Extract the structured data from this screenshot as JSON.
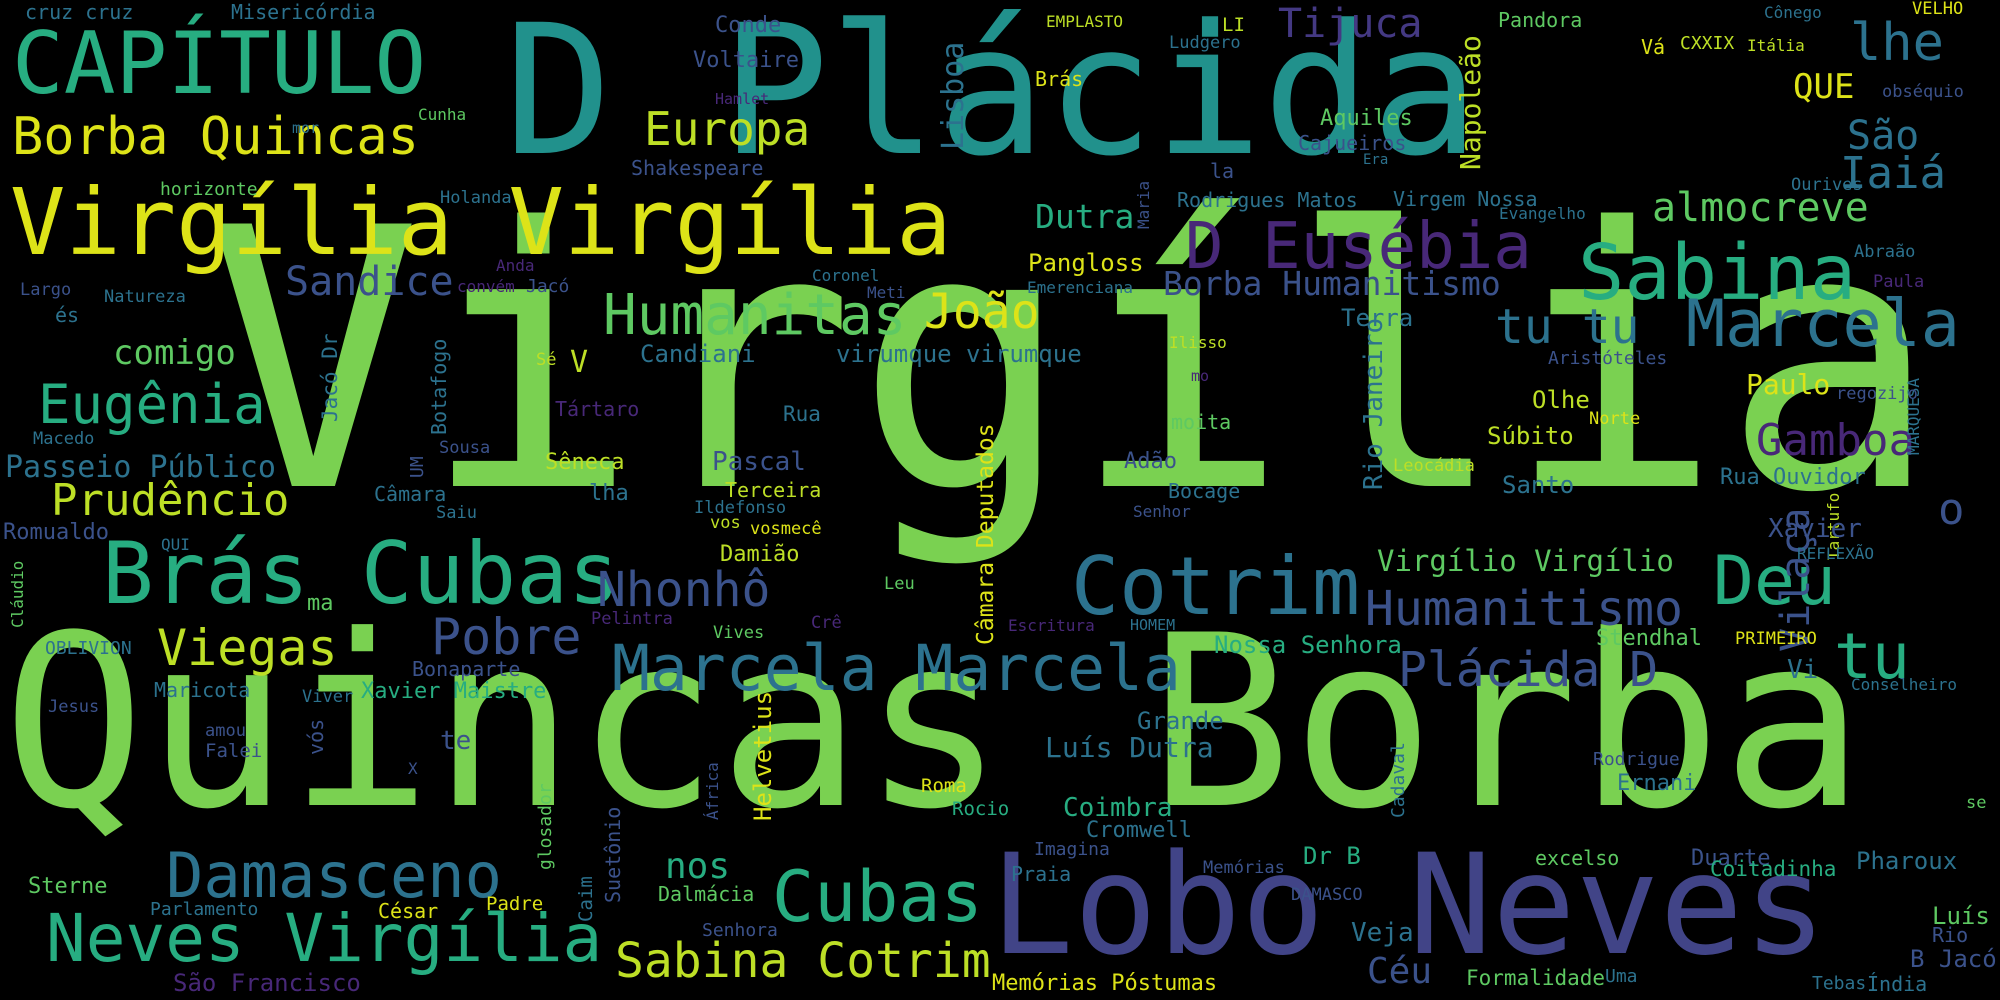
{
  "background_color": "#000000",
  "words": [
    {
      "text": "Virgília",
      "color": "#7ad151",
      "vertical": false
    },
    {
      "text": "Quincas Borba",
      "color": "#7ad151",
      "vertical": false
    },
    {
      "text": "D Plácida",
      "color": "#21918c",
      "vertical": false
    },
    {
      "text": "Lobo Neves",
      "color": "#414487",
      "vertical": false
    },
    {
      "text": "Virgília Virgília",
      "color": "#dde318",
      "vertical": false
    },
    {
      "text": "CAPÍTULO",
      "color": "#27ad81",
      "vertical": false
    },
    {
      "text": "Brás Cubas",
      "color": "#27ad81",
      "vertical": false
    },
    {
      "text": "Borba Quincas",
      "color": "#dde318",
      "vertical": false
    },
    {
      "text": "Neves Virgília",
      "color": "#27ad81",
      "vertical": false
    },
    {
      "text": "Cotrim",
      "color": "#2c728e",
      "vertical": false
    },
    {
      "text": "Marcela Marcela",
      "color": "#2c728e",
      "vertical": false
    },
    {
      "text": "Sabina",
      "color": "#27ad81",
      "vertical": false
    },
    {
      "text": "Marcela",
      "color": "#2c728e",
      "vertical": false
    },
    {
      "text": "D Eusébia",
      "color": "#482878",
      "vertical": false
    },
    {
      "text": "Humanitas",
      "color": "#5ec962",
      "vertical": false
    },
    {
      "text": "Damasceno",
      "color": "#2c728e",
      "vertical": false
    },
    {
      "text": "Cubas",
      "color": "#27ad81",
      "vertical": false
    },
    {
      "text": "Sabina Cotrim",
      "color": "#bddf26",
      "vertical": false
    },
    {
      "text": "Humanitismo",
      "color": "#3b528b",
      "vertical": false
    },
    {
      "text": "Plácida D",
      "color": "#3b528b",
      "vertical": false
    },
    {
      "text": "Deu",
      "color": "#27ad81",
      "vertical": false
    },
    {
      "text": "tu",
      "color": "#27ad81",
      "vertical": false
    },
    {
      "text": "tu tu",
      "color": "#2c728e",
      "vertical": false
    },
    {
      "text": "Europa",
      "color": "#bddf26",
      "vertical": false
    },
    {
      "text": "Eugênia",
      "color": "#27ad81",
      "vertical": false
    },
    {
      "text": "Prudêncio",
      "color": "#bddf26",
      "vertical": false
    },
    {
      "text": "Viegas",
      "color": "#bddf26",
      "vertical": false
    },
    {
      "text": "Nhonhô",
      "color": "#3b528b",
      "vertical": false
    },
    {
      "text": "Pobre",
      "color": "#3b528b",
      "vertical": false
    },
    {
      "text": "João",
      "color": "#dde318",
      "vertical": false
    },
    {
      "text": "Borba Humanitismo",
      "color": "#3b528b",
      "vertical": false
    },
    {
      "text": "almocreve",
      "color": "#5ec962",
      "vertical": false
    },
    {
      "text": "Sandice",
      "color": "#3b528b",
      "vertical": false
    },
    {
      "text": "Gamboa",
      "color": "#482878",
      "vertical": false
    },
    {
      "text": "Iaiá",
      "color": "#2c728e",
      "vertical": false
    },
    {
      "text": "lhe",
      "color": "#2c728e",
      "vertical": false
    },
    {
      "text": "QUE",
      "color": "#dde318",
      "vertical": false
    },
    {
      "text": "São",
      "color": "#2c728e",
      "vertical": false
    },
    {
      "text": "Tijuca",
      "color": "#443983",
      "vertical": false
    },
    {
      "text": "Dutra",
      "color": "#27ad81",
      "vertical": false
    },
    {
      "text": "nos",
      "color": "#27ad81",
      "vertical": false
    },
    {
      "text": "comigo",
      "color": "#5ec962",
      "vertical": false
    },
    {
      "text": "Passeio Público",
      "color": "#2c728e",
      "vertical": false
    },
    {
      "text": "Virgílio Virgílio",
      "color": "#5ec962",
      "vertical": false
    },
    {
      "text": "Vilaça",
      "color": "#3b528b",
      "vertical": true
    },
    {
      "text": "Lisboa",
      "color": "#2c728e",
      "vertical": true
    },
    {
      "text": "Napoleão",
      "color": "#bddf26",
      "vertical": true
    },
    {
      "text": "Câmara Deputados",
      "color": "#dde318",
      "vertical": true
    },
    {
      "text": "Rio Janeiro",
      "color": "#2c728e",
      "vertical": true
    },
    {
      "text": "Jacó Dr",
      "color": "#2c728e",
      "vertical": true
    },
    {
      "text": "Botafogo",
      "color": "#2c728e",
      "vertical": true
    },
    {
      "text": "Helvetius",
      "color": "#dde318",
      "vertical": true
    },
    {
      "text": "Suetônio",
      "color": "#3b528b",
      "vertical": true
    },
    {
      "text": "glosador",
      "color": "#5ec962",
      "vertical": true
    },
    {
      "text": "Caim",
      "color": "#2c728e",
      "vertical": true
    },
    {
      "text": "África",
      "color": "#3b528b",
      "vertical": true
    },
    {
      "text": "vós",
      "color": "#3b528b",
      "vertical": true
    },
    {
      "text": "Cadaval",
      "color": "#2c728e",
      "vertical": true
    },
    {
      "text": "UM",
      "color": "#3b528b",
      "vertical": true
    },
    {
      "text": "Maria",
      "color": "#3b528b",
      "vertical": true
    },
    {
      "text": "Tartufo",
      "color": "#bddf26",
      "vertical": true
    },
    {
      "text": "MARQUESA",
      "color": "#2c728e",
      "vertical": true
    },
    {
      "text": "Cláudio",
      "color": "#5ec962",
      "vertical": true
    },
    {
      "text": "Pangloss",
      "color": "#dde318",
      "vertical": false
    },
    {
      "text": "Candiani",
      "color": "#2c728e",
      "vertical": false
    },
    {
      "text": "virumque virumque",
      "color": "#2c728e",
      "vertical": false
    },
    {
      "text": "Terra",
      "color": "#2c728e",
      "vertical": false
    },
    {
      "text": "Paulo",
      "color": "#dde318",
      "vertical": false
    },
    {
      "text": "Olhe",
      "color": "#bddf26",
      "vertical": false
    },
    {
      "text": "Súbito",
      "color": "#bddf26",
      "vertical": false
    },
    {
      "text": "Santo",
      "color": "#2c728e",
      "vertical": false
    },
    {
      "text": "Xavier",
      "color": "#3b528b",
      "vertical": false
    },
    {
      "text": "Rua Ouvidor",
      "color": "#2c728e",
      "vertical": false
    },
    {
      "text": "o",
      "color": "#3b528b",
      "vertical": false
    },
    {
      "text": "Vi",
      "color": "#2c728e",
      "vertical": false
    },
    {
      "text": "Stendhal",
      "color": "#5ec962",
      "vertical": false
    },
    {
      "text": "PRIMEIRO",
      "color": "#dde318",
      "vertical": false
    },
    {
      "text": "Nossa Senhora",
      "color": "#27ad81",
      "vertical": false
    },
    {
      "text": "Luís Dutra",
      "color": "#2c728e",
      "vertical": false
    },
    {
      "text": "Grande",
      "color": "#2c728e",
      "vertical": false
    },
    {
      "text": "Coimbra",
      "color": "#27ad81",
      "vertical": false
    },
    {
      "text": "Cromwell",
      "color": "#2c728e",
      "vertical": false
    },
    {
      "text": "Ernani",
      "color": "#2c728e",
      "vertical": false
    },
    {
      "text": "Rodrigue",
      "color": "#3b528b",
      "vertical": false
    },
    {
      "text": "Dr B",
      "color": "#27ad81",
      "vertical": false
    },
    {
      "text": "Veja",
      "color": "#2c728e",
      "vertical": false
    },
    {
      "text": "Céu",
      "color": "#3b528b",
      "vertical": false
    },
    {
      "text": "Formalidade",
      "color": "#5ec962",
      "vertical": false
    },
    {
      "text": "Uma",
      "color": "#2c728e",
      "vertical": false
    },
    {
      "text": "excelso",
      "color": "#5ec962",
      "vertical": false
    },
    {
      "text": "Duarte",
      "color": "#3b528b",
      "vertical": false
    },
    {
      "text": "Coitadinha",
      "color": "#27ad81",
      "vertical": false
    },
    {
      "text": "Pharoux",
      "color": "#2c728e",
      "vertical": false
    },
    {
      "text": "Luís",
      "color": "#5ec962",
      "vertical": false
    },
    {
      "text": "Rio",
      "color": "#3b528b",
      "vertical": false
    },
    {
      "text": "B Jacó",
      "color": "#3b528b",
      "vertical": false
    },
    {
      "text": "Tebas",
      "color": "#2c728e",
      "vertical": false
    },
    {
      "text": "Índia",
      "color": "#2c728e",
      "vertical": false
    },
    {
      "text": "Memórias Póstumas",
      "color": "#dde318",
      "vertical": false
    },
    {
      "text": "DAMASCO",
      "color": "#3b528b",
      "vertical": false
    },
    {
      "text": "Memórias",
      "color": "#3b528b",
      "vertical": false
    },
    {
      "text": "Praia",
      "color": "#2c728e",
      "vertical": false
    },
    {
      "text": "Imagina",
      "color": "#3b528b",
      "vertical": false
    },
    {
      "text": "Rocio",
      "color": "#27ad81",
      "vertical": false
    },
    {
      "text": "Roma",
      "color": "#dde318",
      "vertical": false
    },
    {
      "text": "Senhora",
      "color": "#3b528b",
      "vertical": false
    },
    {
      "text": "Dalmácia",
      "color": "#5ec962",
      "vertical": false
    },
    {
      "text": "Padre",
      "color": "#dde318",
      "vertical": false
    },
    {
      "text": "César",
      "color": "#dde318",
      "vertical": false
    },
    {
      "text": "Parlamento",
      "color": "#2c728e",
      "vertical": false
    },
    {
      "text": "Sterne",
      "color": "#5ec962",
      "vertical": false
    },
    {
      "text": "São Francisco",
      "color": "#482878",
      "vertical": false
    },
    {
      "text": "Maricota",
      "color": "#2c728e",
      "vertical": false
    },
    {
      "text": "Jesus",
      "color": "#3b528b",
      "vertical": false
    },
    {
      "text": "amou",
      "color": "#3b528b",
      "vertical": false
    },
    {
      "text": "Falei",
      "color": "#3b528b",
      "vertical": false
    },
    {
      "text": "Viver",
      "color": "#2c728e",
      "vertical": false
    },
    {
      "text": "Xavier Maistre",
      "color": "#27ad81",
      "vertical": false
    },
    {
      "text": "Bonaparte",
      "color": "#3b528b",
      "vertical": false
    },
    {
      "text": "te",
      "color": "#3b528b",
      "vertical": false
    },
    {
      "text": "X",
      "color": "#3b528b",
      "vertical": false
    },
    {
      "text": "OBLIVION",
      "color": "#2c728e",
      "vertical": false
    },
    {
      "text": "QUI",
      "color": "#2c728e",
      "vertical": false
    },
    {
      "text": "ma",
      "color": "#5ec962",
      "vertical": false
    },
    {
      "text": "Romualdo",
      "color": "#3b528b",
      "vertical": false
    },
    {
      "text": "Macedo",
      "color": "#2c728e",
      "vertical": false
    },
    {
      "text": "és",
      "color": "#2c728e",
      "vertical": false
    },
    {
      "text": "Largo",
      "color": "#3b528b",
      "vertical": false
    },
    {
      "text": "Natureza",
      "color": "#2c728e",
      "vertical": false
    },
    {
      "text": "Anda",
      "color": "#482878",
      "vertical": false
    },
    {
      "text": "convém",
      "color": "#482878",
      "vertical": false
    },
    {
      "text": "Jacó",
      "color": "#3b528b",
      "vertical": false
    },
    {
      "text": "Holanda",
      "color": "#2c728e",
      "vertical": false
    },
    {
      "text": "horizonte",
      "color": "#5ec962",
      "vertical": false
    },
    {
      "text": "Cunha",
      "color": "#5ec962",
      "vertical": false
    },
    {
      "text": "mor",
      "color": "#2c728e",
      "vertical": false
    },
    {
      "text": "Shakespeare",
      "color": "#3b528b",
      "vertical": false
    },
    {
      "text": "Hamlet",
      "color": "#482878",
      "vertical": false
    },
    {
      "text": "Voltaire",
      "color": "#3b528b",
      "vertical": false
    },
    {
      "text": "Conde",
      "color": "#3b528b",
      "vertical": false
    },
    {
      "text": "Misericórdia",
      "color": "#2c728e",
      "vertical": false
    },
    {
      "text": "cruz cruz",
      "color": "#2c728e",
      "vertical": false
    },
    {
      "text": "EMPLASTO",
      "color": "#bddf26",
      "vertical": false
    },
    {
      "text": "Brás",
      "color": "#dde318",
      "vertical": false
    },
    {
      "text": "LI",
      "color": "#bddf26",
      "vertical": false
    },
    {
      "text": "Ludgero",
      "color": "#2c728e",
      "vertical": false
    },
    {
      "text": "Aquiles",
      "color": "#5ec962",
      "vertical": false
    },
    {
      "text": "Cajueiros",
      "color": "#3b528b",
      "vertical": false
    },
    {
      "text": "Era",
      "color": "#2c728e",
      "vertical": false
    },
    {
      "text": "la",
      "color": "#3b528b",
      "vertical": false
    },
    {
      "text": "Rodrigues Matos",
      "color": "#2c728e",
      "vertical": false
    },
    {
      "text": "Virgem Nossa",
      "color": "#2c728e",
      "vertical": false
    },
    {
      "text": "Evangelho",
      "color": "#2c728e",
      "vertical": false
    },
    {
      "text": "Pandora",
      "color": "#5ec962",
      "vertical": false
    },
    {
      "text": "Vá",
      "color": "#dde318",
      "vertical": false
    },
    {
      "text": "CXXIX",
      "color": "#bddf26",
      "vertical": false
    },
    {
      "text": "Itália",
      "color": "#bddf26",
      "vertical": false
    },
    {
      "text": "Cônego",
      "color": "#2c728e",
      "vertical": false
    },
    {
      "text": "VELHO",
      "color": "#dde318",
      "vertical": false
    },
    {
      "text": "obséquio",
      "color": "#3b528b",
      "vertical": false
    },
    {
      "text": "Ourives",
      "color": "#2c728e",
      "vertical": false
    },
    {
      "text": "Abraão",
      "color": "#2c728e",
      "vertical": false
    },
    {
      "text": "Paula",
      "color": "#482878",
      "vertical": false
    },
    {
      "text": "Emerenciana",
      "color": "#2c728e",
      "vertical": false
    },
    {
      "text": "Meti",
      "color": "#3b528b",
      "vertical": false
    },
    {
      "text": "Coronel",
      "color": "#2c728e",
      "vertical": false
    },
    {
      "text": "Ilisso",
      "color": "#bddf26",
      "vertical": false
    },
    {
      "text": "mo",
      "color": "#482878",
      "vertical": false
    },
    {
      "text": "moita",
      "color": "#5ec962",
      "vertical": false
    },
    {
      "text": "Adão",
      "color": "#3b528b",
      "vertical": false
    },
    {
      "text": "Bocage",
      "color": "#2c728e",
      "vertical": false
    },
    {
      "text": "Senhor",
      "color": "#3b528b",
      "vertical": false
    },
    {
      "text": "Leocádia",
      "color": "#bddf26",
      "vertical": false
    },
    {
      "text": "Norte",
      "color": "#dde318",
      "vertical": false
    },
    {
      "text": "regozijo",
      "color": "#3b528b",
      "vertical": false
    },
    {
      "text": "Aristóteles",
      "color": "#3b528b",
      "vertical": false
    },
    {
      "text": "REFLEXÃO",
      "color": "#2c728e",
      "vertical": false
    },
    {
      "text": "Conselheiro",
      "color": "#2c728e",
      "vertical": false
    },
    {
      "text": "se",
      "color": "#5ec962",
      "vertical": false
    },
    {
      "text": "HOMEM",
      "color": "#2c728e",
      "vertical": false
    },
    {
      "text": "Escritura",
      "color": "#482878",
      "vertical": false
    },
    {
      "text": "Leu",
      "color": "#5ec962",
      "vertical": false
    },
    {
      "text": "Crê",
      "color": "#482878",
      "vertical": false
    },
    {
      "text": "Vives",
      "color": "#5ec962",
      "vertical": false
    },
    {
      "text": "Pelintra",
      "color": "#482878",
      "vertical": false
    },
    {
      "text": "Damião",
      "color": "#bddf26",
      "vertical": false
    },
    {
      "text": "vos",
      "color": "#bddf26",
      "vertical": false
    },
    {
      "text": "vosmecê",
      "color": "#dde318",
      "vertical": false
    },
    {
      "text": "Ildefonso",
      "color": "#2c728e",
      "vertical": false
    },
    {
      "text": "Terceira",
      "color": "#bddf26",
      "vertical": false
    },
    {
      "text": "lha",
      "color": "#2c728e",
      "vertical": false
    },
    {
      "text": "Pascal",
      "color": "#3b528b",
      "vertical": false
    },
    {
      "text": "Sêneca",
      "color": "#bddf26",
      "vertical": false
    },
    {
      "text": "Rua",
      "color": "#2c728e",
      "vertical": false
    },
    {
      "text": "Tártaro",
      "color": "#482878",
      "vertical": false
    },
    {
      "text": "V",
      "color": "#bddf26",
      "vertical": false
    },
    {
      "text": "Sé",
      "color": "#bddf26",
      "vertical": false
    },
    {
      "text": "Sousa",
      "color": "#3b528b",
      "vertical": false
    },
    {
      "text": "Câmara",
      "color": "#2c728e",
      "vertical": false
    },
    {
      "text": "Saiu",
      "color": "#2c728e",
      "vertical": false
    }
  ]
}
